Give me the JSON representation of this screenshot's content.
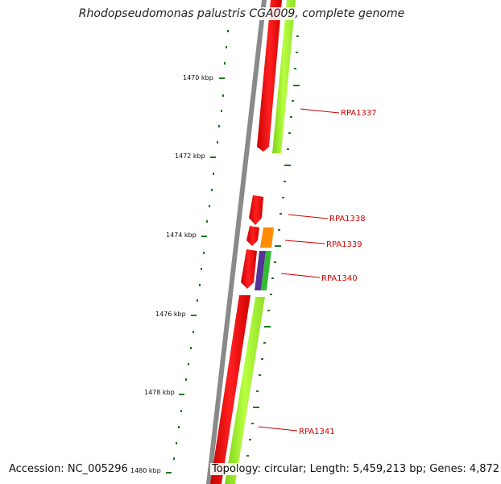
{
  "title": "Rhodopseudomonas palustris CGA009, complete genome",
  "accession_label": "Accession: NC_005296",
  "topology_label": "Topology: circular; Length: 5,459,213 bp; Genes: 4,872",
  "scale_labels": [
    "1470 kbp",
    "1472 kbp",
    "1474 kbp",
    "1476 kbp",
    "1478 kbp",
    "1480 kbp"
  ],
  "gene_labels": [
    "RPA1337",
    "RPA1338",
    "RPA1339",
    "RPA1340",
    "RPA1341"
  ],
  "colors": {
    "backbone": "#8a8a8a",
    "forward_cds": "#ff0000",
    "reverse_cds": "#a6ff33",
    "label_red": "#d10000",
    "tick_green": "#1a7a1a",
    "orange_gene": "#ff8c00",
    "purple_gene": "#553399",
    "green_gene": "#33bb33"
  }
}
